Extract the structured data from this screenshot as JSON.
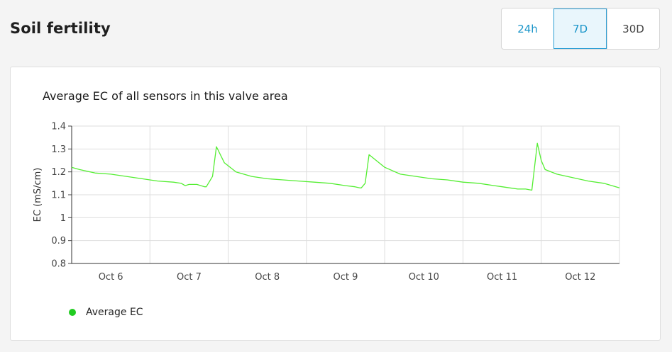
{
  "header": {
    "title": "Soil fertility"
  },
  "range_selector": {
    "options": [
      "24h",
      "7D",
      "30D"
    ],
    "selected": "7D"
  },
  "colors": {
    "series": "#55ee33",
    "legend_dot": "#22cc22",
    "accent": "#1a95c9",
    "grid": "#dddddd"
  },
  "chart_data": {
    "type": "line",
    "title": "Average EC of all sensors in this valve area",
    "xlabel": "",
    "ylabel": "EC (mS/cm)",
    "ylim": [
      0.8,
      1.4
    ],
    "yticks": [
      "0.8",
      "0.9",
      "1",
      "1.1",
      "1.2",
      "1.3",
      "1.4"
    ],
    "xlim": [
      5.5,
      12.5
    ],
    "xticks": [
      6,
      7,
      8,
      9,
      10,
      11,
      12
    ],
    "xticklabels": [
      "Oct 6",
      "Oct 7",
      "Oct 8",
      "Oct 9",
      "Oct 10",
      "Oct 11",
      "Oct 12"
    ],
    "grid": true,
    "legend_position": "bottom-left",
    "series": [
      {
        "name": "Average EC",
        "x": [
          5.5,
          5.6,
          5.8,
          6.0,
          6.2,
          6.4,
          6.6,
          6.8,
          6.9,
          6.95,
          7.0,
          7.1,
          7.15,
          7.2,
          7.22,
          7.3,
          7.35,
          7.45,
          7.6,
          7.8,
          8.0,
          8.2,
          8.4,
          8.6,
          8.8,
          9.0,
          9.12,
          9.18,
          9.2,
          9.25,
          9.3,
          9.5,
          9.7,
          9.9,
          10.1,
          10.3,
          10.5,
          10.7,
          10.9,
          11.0,
          11.1,
          11.2,
          11.3,
          11.38,
          11.45,
          11.5,
          11.55,
          11.7,
          11.9,
          12.1,
          12.3,
          12.5
        ],
        "y": [
          1.22,
          1.21,
          1.195,
          1.19,
          1.18,
          1.17,
          1.16,
          1.155,
          1.15,
          1.14,
          1.145,
          1.145,
          1.14,
          1.135,
          1.135,
          1.18,
          1.31,
          1.24,
          1.2,
          1.18,
          1.17,
          1.165,
          1.16,
          1.155,
          1.15,
          1.14,
          1.135,
          1.13,
          1.13,
          1.15,
          1.275,
          1.22,
          1.19,
          1.18,
          1.17,
          1.165,
          1.155,
          1.15,
          1.14,
          1.135,
          1.13,
          1.125,
          1.125,
          1.12,
          1.325,
          1.25,
          1.21,
          1.19,
          1.175,
          1.16,
          1.15,
          1.13
        ]
      }
    ]
  }
}
